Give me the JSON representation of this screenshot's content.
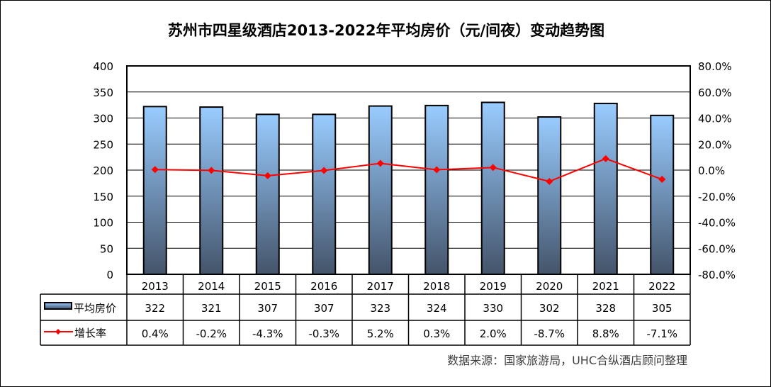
{
  "chart_data": {
    "type": "bar+line",
    "title": "苏州市四星级酒店2013-2022年平均房价（元/间夜）变动趋势图",
    "categories": [
      "2013",
      "2014",
      "2015",
      "2016",
      "2017",
      "2018",
      "2019",
      "2020",
      "2021",
      "2022"
    ],
    "series": [
      {
        "name": "平均房价",
        "type": "bar",
        "axis": "left",
        "values": [
          322,
          321,
          307,
          307,
          323,
          324,
          330,
          302,
          328,
          305
        ],
        "labels": [
          "322",
          "321",
          "307",
          "307",
          "323",
          "324",
          "330",
          "302",
          "328",
          "305"
        ],
        "color_top": "#99ccff",
        "color_bottom": "#44546a"
      },
      {
        "name": "增长率",
        "type": "line",
        "axis": "right",
        "values": [
          0.4,
          -0.2,
          -4.3,
          -0.3,
          5.2,
          0.3,
          2.0,
          -8.7,
          8.8,
          -7.1
        ],
        "labels": [
          "0.4%",
          "-0.2%",
          "-4.3%",
          "-0.3%",
          "5.2%",
          "0.3%",
          "2.0%",
          "-8.7%",
          "8.8%",
          "-7.1%"
        ],
        "color": "#ff0000"
      }
    ],
    "y_left": {
      "lim": [
        0,
        400
      ],
      "ticks": [
        "0",
        "50",
        "100",
        "150",
        "200",
        "250",
        "300",
        "350",
        "400"
      ]
    },
    "y_right": {
      "lim": [
        -80,
        80
      ],
      "ticks": [
        "-80.0%",
        "-60.0%",
        "-40.0%",
        "-20.0%",
        "0.0%",
        "20.0%",
        "40.0%",
        "60.0%",
        "80.0%"
      ]
    },
    "grid": true,
    "legend": "data-table",
    "source": "数据来源：国家旅游局，UHC合纵酒店顾问整理"
  }
}
